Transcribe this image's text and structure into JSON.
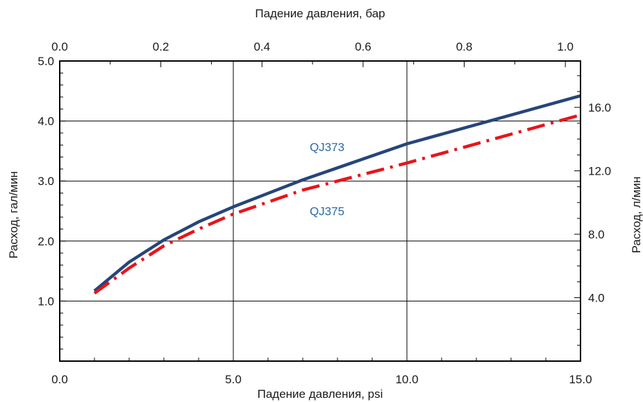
{
  "chart_data": {
    "type": "line",
    "x_bottom": {
      "label": "Падение давления, psi",
      "range": [
        0,
        15
      ],
      "ticks": [
        "0.0",
        "5.0",
        "10.0",
        "15.0"
      ],
      "tick_values": [
        0,
        5,
        10,
        15
      ]
    },
    "x_top": {
      "label": "Падение давления, бар",
      "range": [
        0,
        1.03
      ],
      "ticks": [
        "0.0",
        "0.2",
        "0.4",
        "0.6",
        "0.8",
        "1.0"
      ],
      "tick_values": [
        0,
        0.2,
        0.4,
        0.6,
        0.8,
        1.0
      ]
    },
    "y_left": {
      "label": "Расход, гал/мин",
      "range": [
        0,
        5
      ],
      "ticks": [
        "1.0",
        "2.0",
        "3.0",
        "4.0",
        "5.0"
      ],
      "tick_values": [
        1,
        2,
        3,
        4,
        5
      ]
    },
    "y_right": {
      "label": "Расход, л/мин",
      "ticks": [
        "4.0",
        "8.0",
        "12.0",
        "16.0"
      ],
      "tick_values": [
        4,
        8,
        12,
        16
      ]
    },
    "grid": true,
    "series": [
      {
        "name": "QJ373",
        "color": "#26457a",
        "style": "solid",
        "x": [
          1,
          2,
          3,
          4,
          5,
          7,
          10,
          15
        ],
        "y": [
          1.17,
          1.65,
          2.02,
          2.32,
          2.57,
          3.02,
          3.62,
          4.42
        ]
      },
      {
        "name": "QJ375",
        "color": "#e8141b",
        "style": "dash-dot",
        "x": [
          1,
          2,
          3,
          4,
          5,
          7,
          10,
          15
        ],
        "y": [
          1.13,
          1.55,
          1.92,
          2.2,
          2.45,
          2.85,
          3.3,
          4.1
        ]
      }
    ],
    "label_color": "#2a6aa8",
    "labels": [
      {
        "text": "QJ373",
        "x": 7.7,
        "y": 3.5
      },
      {
        "text": "QJ375",
        "x": 7.7,
        "y": 2.43
      }
    ]
  }
}
